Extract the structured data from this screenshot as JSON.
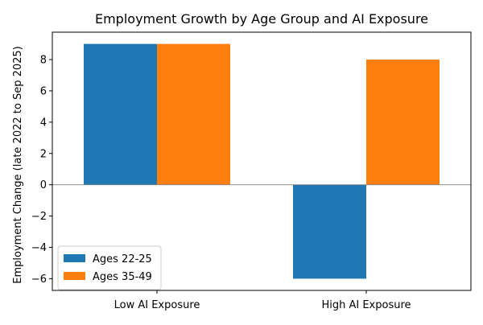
{
  "chart_data": {
    "type": "bar",
    "title": "Employment Growth by Age Group and AI Exposure",
    "xlabel": "",
    "ylabel": "Employment Change (late 2022 to Sep 2025)",
    "categories": [
      "Low AI Exposure",
      "High AI Exposure"
    ],
    "series": [
      {
        "name": "Ages 22-25",
        "values": [
          9,
          -6
        ],
        "color": "#1f77b4"
      },
      {
        "name": "Ages 35-49",
        "values": [
          9,
          8
        ],
        "color": "#ff7f0e"
      }
    ],
    "ylim": [
      -6.75,
      9.75
    ],
    "yticks": [
      -6,
      -4,
      -2,
      0,
      2,
      4,
      6,
      8
    ],
    "ytick_labels": [
      "−6",
      "−4",
      "−2",
      "0",
      "2",
      "4",
      "6",
      "8"
    ],
    "zero_line": true,
    "grid": false,
    "legend_position": "lower-left"
  }
}
